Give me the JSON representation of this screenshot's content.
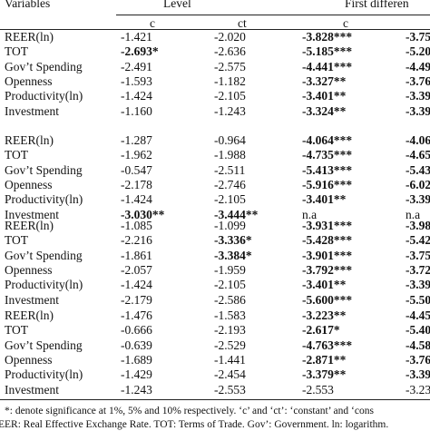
{
  "header": {
    "variables": "Variables",
    "level": "Level",
    "first_difference": "First differen"
  },
  "subheader": [
    "c",
    "ct",
    "c"
  ],
  "blocks": [
    {
      "rows": [
        {
          "variable": "REER(ln)",
          "cells": [
            {
              "text": "-1.421",
              "bold": false
            },
            {
              "text": "-2.020",
              "bold": false
            },
            {
              "text": "-3.828***",
              "bold": true
            },
            {
              "text": "-3.75",
              "bold": true
            }
          ]
        },
        {
          "variable": "TOT",
          "cells": [
            {
              "text": "-2.693*",
              "bold": true
            },
            {
              "text": "-2.636",
              "bold": false
            },
            {
              "text": "-5.185***",
              "bold": true
            },
            {
              "text": "-5.20",
              "bold": true
            }
          ]
        },
        {
          "variable": "Gov’t Spending",
          "cells": [
            {
              "text": "-2.491",
              "bold": false
            },
            {
              "text": "-2.575",
              "bold": false
            },
            {
              "text": "-4.441***",
              "bold": true
            },
            {
              "text": "-4.49",
              "bold": true
            }
          ]
        },
        {
          "variable": "Openness",
          "cells": [
            {
              "text": "-1.593",
              "bold": false
            },
            {
              "text": "-1.182",
              "bold": false
            },
            {
              "text": "-3.327**",
              "bold": true
            },
            {
              "text": "-3.76",
              "bold": true
            }
          ]
        },
        {
          "variable": "Productivity(ln)",
          "cells": [
            {
              "text": "-1.424",
              "bold": false
            },
            {
              "text": "-2.105",
              "bold": false
            },
            {
              "text": "-3.401**",
              "bold": true
            },
            {
              "text": "-3.39",
              "bold": true
            }
          ]
        },
        {
          "variable": "Investment",
          "cells": [
            {
              "text": "-1.160",
              "bold": false
            },
            {
              "text": "-1.243",
              "bold": false
            },
            {
              "text": "-3.324**",
              "bold": true
            },
            {
              "text": "-3.39",
              "bold": true
            }
          ]
        }
      ]
    },
    {
      "rows": [
        {
          "variable": "REER(ln)",
          "cells": [
            {
              "text": "-1.287",
              "bold": false
            },
            {
              "text": "-0.964",
              "bold": false
            },
            {
              "text": "-4.064***",
              "bold": true
            },
            {
              "text": "-4.06",
              "bold": true
            }
          ]
        },
        {
          "variable": "TOT",
          "cells": [
            {
              "text": "-1.962",
              "bold": false
            },
            {
              "text": "-1.988",
              "bold": false
            },
            {
              "text": "-4.735***",
              "bold": true
            },
            {
              "text": "-4.65",
              "bold": true
            }
          ]
        },
        {
          "variable": "Gov’t Spending",
          "cells": [
            {
              "text": "-0.547",
              "bold": false
            },
            {
              "text": "-2.511",
              "bold": false
            },
            {
              "text": "-5.413***",
              "bold": true
            },
            {
              "text": "-5.43",
              "bold": true
            }
          ]
        },
        {
          "variable": "Openness",
          "cells": [
            {
              "text": "-2.178",
              "bold": false
            },
            {
              "text": "-2.746",
              "bold": false
            },
            {
              "text": "-5.916***",
              "bold": true
            },
            {
              "text": "-6.02",
              "bold": true
            }
          ]
        },
        {
          "variable": "Productivity(ln)",
          "cells": [
            {
              "text": "-1.424",
              "bold": false
            },
            {
              "text": "-2.105",
              "bold": false
            },
            {
              "text": "-3.401**",
              "bold": true
            },
            {
              "text": "-3.39",
              "bold": true
            }
          ]
        },
        {
          "variable": "Investment",
          "cells": [
            {
              "text": "-3.030**",
              "bold": true
            },
            {
              "text": "-3.444**",
              "bold": true
            },
            {
              "text": "n.a",
              "bold": false
            },
            {
              "text": "n.a",
              "bold": false
            }
          ]
        }
      ]
    },
    {
      "rows": [
        {
          "variable": "REER(ln)",
          "cells": [
            {
              "text": "-1.085",
              "bold": false
            },
            {
              "text": "-1.099",
              "bold": false
            },
            {
              "text": "-3.931***",
              "bold": true
            },
            {
              "text": "-3.98",
              "bold": true
            }
          ]
        },
        {
          "variable": "TOT",
          "cells": [
            {
              "text": "-2.216",
              "bold": false
            },
            {
              "text": "-3.336*",
              "bold": true
            },
            {
              "text": "-5.428***",
              "bold": true
            },
            {
              "text": "-5.42",
              "bold": true
            }
          ]
        },
        {
          "variable": "Gov’t Spending",
          "cells": [
            {
              "text": "-1.861",
              "bold": false
            },
            {
              "text": "-3.384*",
              "bold": true
            },
            {
              "text": "-3.901***",
              "bold": true
            },
            {
              "text": "-3.75",
              "bold": true
            }
          ]
        },
        {
          "variable": "Openness",
          "cells": [
            {
              "text": "-2.057",
              "bold": false
            },
            {
              "text": "-1.959",
              "bold": false
            },
            {
              "text": "-3.792***",
              "bold": true
            },
            {
              "text": "-3.72",
              "bold": true
            }
          ]
        },
        {
          "variable": "Productivity(ln)",
          "cells": [
            {
              "text": "-1.424",
              "bold": false
            },
            {
              "text": "-2.105",
              "bold": false
            },
            {
              "text": "-3.401**",
              "bold": true
            },
            {
              "text": "-3.39",
              "bold": true
            }
          ]
        },
        {
          "variable": "Investment",
          "cells": [
            {
              "text": "-2.179",
              "bold": false
            },
            {
              "text": "-2.586",
              "bold": false
            },
            {
              "text": "-5.600***",
              "bold": true
            },
            {
              "text": "-5.50",
              "bold": true
            }
          ]
        }
      ]
    },
    {
      "rows": [
        {
          "variable": "REER(ln)",
          "cells": [
            {
              "text": "-1.476",
              "bold": false
            },
            {
              "text": "-1.583",
              "bold": false
            },
            {
              "text": "-3.223**",
              "bold": true
            },
            {
              "text": "-4.45",
              "bold": true
            }
          ]
        },
        {
          "variable": "TOT",
          "cells": [
            {
              "text": "-0.666",
              "bold": false
            },
            {
              "text": "-2.193",
              "bold": false
            },
            {
              "text": "-2.617*",
              "bold": true
            },
            {
              "text": "-5.40",
              "bold": true
            }
          ]
        },
        {
          "variable": "Gov’t Spending",
          "cells": [
            {
              "text": "-0.639",
              "bold": false
            },
            {
              "text": "-2.529",
              "bold": false
            },
            {
              "text": "-4.763***",
              "bold": true
            },
            {
              "text": "-4.58",
              "bold": true
            }
          ]
        },
        {
          "variable": "Openness",
          "cells": [
            {
              "text": "-1.689",
              "bold": false
            },
            {
              "text": "-1.441",
              "bold": false
            },
            {
              "text": "-2.871**",
              "bold": true
            },
            {
              "text": "-3.76",
              "bold": true
            }
          ]
        },
        {
          "variable": "Productivity(ln)",
          "cells": [
            {
              "text": "-1.429",
              "bold": false
            },
            {
              "text": "-2.454",
              "bold": false
            },
            {
              "text": "-3.379**",
              "bold": true
            },
            {
              "text": "-3.39",
              "bold": true
            }
          ]
        },
        {
          "variable": "Investment",
          "cells": [
            {
              "text": "-1.243",
              "bold": false
            },
            {
              "text": "-2.553",
              "bold": false
            },
            {
              "text": "-2.553",
              "bold": false
            },
            {
              "text": "-3.23",
              "bold": false
            }
          ]
        }
      ]
    }
  ],
  "footnotes": [
    "*: denote significance at 1%, 5% and 10% respectively. ‘c’ and ‘ct’: ‘constant’ and ‘cons",
    "EER: Real Effective Exchange Rate. TOT: Terms of Trade. Gov’: Government. ln: logarithm."
  ]
}
